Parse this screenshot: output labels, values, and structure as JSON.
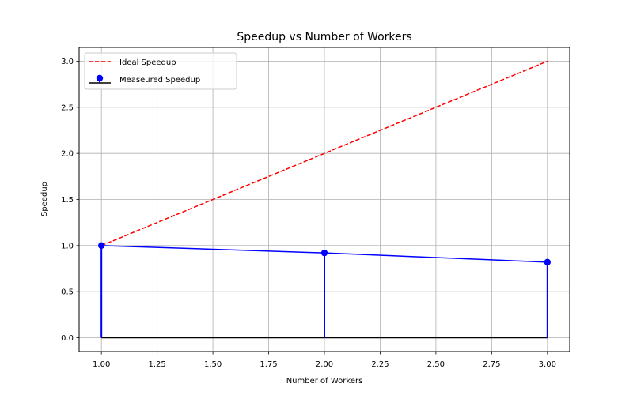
{
  "chart_data": {
    "type": "line",
    "title": "Speedup vs Number of Workers",
    "xlabel": "Number of Workers",
    "ylabel": "Speedup",
    "xlim": [
      0.9,
      3.1
    ],
    "ylim": [
      -0.15,
      3.15
    ],
    "x_ticks": [
      "1.00",
      "1.25",
      "1.50",
      "1.75",
      "2.00",
      "2.25",
      "2.50",
      "2.75",
      "3.00"
    ],
    "y_ticks": [
      "0.0",
      "0.5",
      "1.0",
      "1.5",
      "2.0",
      "2.5",
      "3.0"
    ],
    "grid": true,
    "legend_position": "top-left",
    "series": [
      {
        "name": "Ideal Speedup",
        "style": "dashed-line",
        "color": "#ff0000",
        "x": [
          1,
          2,
          3
        ],
        "y": [
          1,
          2,
          3
        ]
      },
      {
        "name": "Measeured Speedup",
        "style": "stem-with-line",
        "color": "#0000ff",
        "baseline_color": "#000000",
        "x": [
          1,
          2,
          3
        ],
        "y": [
          1.0,
          0.92,
          0.82
        ]
      }
    ]
  }
}
